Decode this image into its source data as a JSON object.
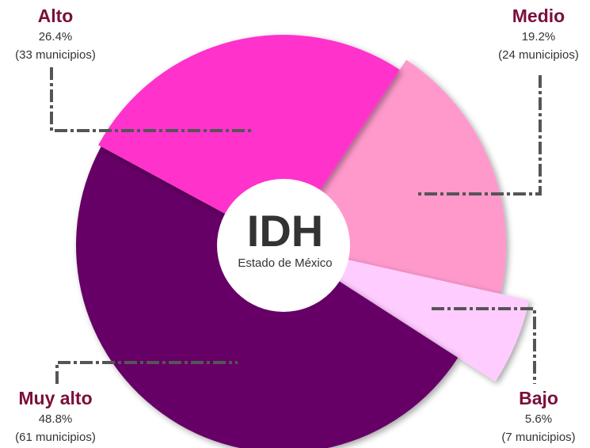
{
  "chart_data": {
    "type": "pie",
    "center_title": "IDH",
    "center_subtitle": "Estado de México",
    "categories": [
      "Medio",
      "Bajo",
      "Muy alto",
      "Alto"
    ],
    "values": [
      19.2,
      5.6,
      48.8,
      26.4
    ],
    "value_labels": [
      "19.2%",
      "5.6%",
      "48.8%",
      "26.4%"
    ],
    "sublabels": [
      "(24 municipios)",
      "(7 municipios)",
      "(61 municipios)",
      "(33 municipios)"
    ],
    "colors": [
      "#ff99cc",
      "#ffccff",
      "#660066",
      "#ff33cc"
    ]
  }
}
